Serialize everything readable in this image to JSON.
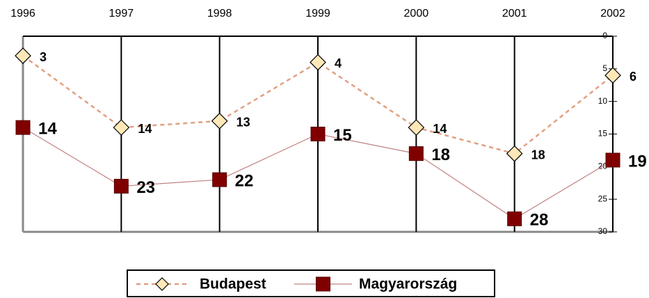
{
  "chart_data": {
    "type": "line",
    "categories": [
      "1996",
      "1997",
      "1998",
      "1999",
      "2000",
      "2001",
      "2002"
    ],
    "series": [
      {
        "name": "Budapest",
        "color": "#e0a080",
        "marker_color": "#ffe8b8",
        "values": [
          3,
          14,
          13,
          4,
          14,
          18,
          6
        ]
      },
      {
        "name": "Magyarország",
        "color": "#c08080",
        "marker_color": "#800000",
        "values": [
          14,
          23,
          22,
          15,
          18,
          28,
          19
        ]
      }
    ],
    "ylim": [
      0,
      30
    ],
    "yticks": [
      0,
      5,
      10,
      15,
      20,
      25,
      30
    ],
    "y_inverted": true,
    "legend": "bottom"
  }
}
